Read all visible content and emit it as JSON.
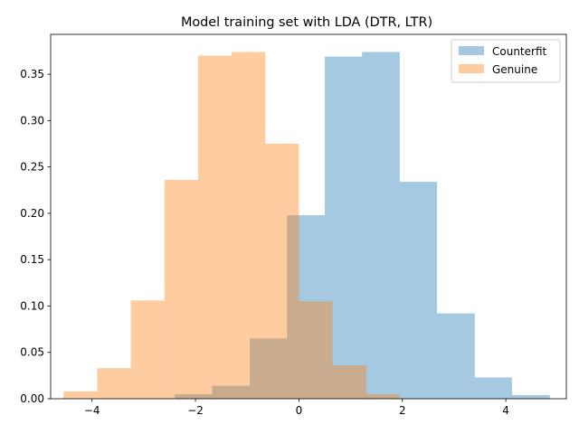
{
  "chart_data": {
    "type": "histogram",
    "title": "Model training set with LDA (DTR, LTR)",
    "xlabel": "",
    "ylabel": "",
    "xlim": [
      -4.8,
      5.17
    ],
    "ylim": [
      0,
      0.393
    ],
    "grid": false,
    "legend_position": "top-right",
    "x_ticks": [
      -4,
      -2,
      0,
      2,
      4
    ],
    "x_tick_labels": [
      "−4",
      "−2",
      "0",
      "2",
      "4"
    ],
    "y_ticks": [
      0.0,
      0.05,
      0.1,
      0.15,
      0.2,
      0.25,
      0.3,
      0.35
    ],
    "y_tick_labels": [
      "0.00",
      "0.05",
      "0.10",
      "0.15",
      "0.20",
      "0.25",
      "0.30",
      "0.35"
    ],
    "series": [
      {
        "name": "Counterfit",
        "color": "#1f77b4",
        "alpha": 0.4,
        "bin_edges": [
          -2.4,
          -1.68,
          -0.95,
          -0.23,
          0.5,
          1.22,
          1.95,
          2.67,
          3.4,
          4.12,
          4.85
        ],
        "values": [
          0.005,
          0.014,
          0.065,
          0.198,
          0.369,
          0.374,
          0.234,
          0.092,
          0.023,
          0.004
        ]
      },
      {
        "name": "Genuine",
        "color": "#ff7f0e",
        "alpha": 0.4,
        "bin_edges": [
          -4.55,
          -3.9,
          -3.25,
          -2.6,
          -1.95,
          -1.3,
          -0.65,
          0.0,
          0.65,
          1.3,
          1.95
        ],
        "values": [
          0.008,
          0.033,
          0.106,
          0.236,
          0.37,
          0.374,
          0.275,
          0.105,
          0.036,
          0.005
        ]
      }
    ]
  }
}
